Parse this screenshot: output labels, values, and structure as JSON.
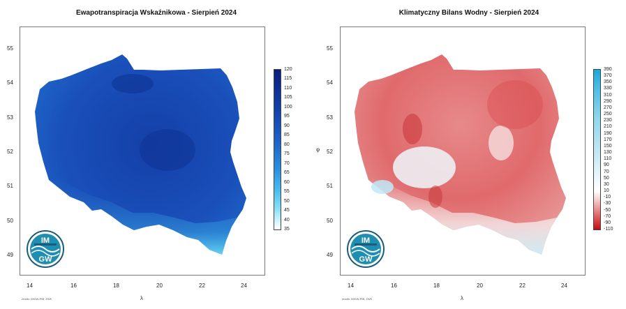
{
  "left": {
    "title": "Ewapotranspiracja Wskaźnikowa - Sierpień 2024",
    "colorbar": {
      "ticks": [
        "120",
        "115",
        "110",
        "105",
        "100",
        "95",
        "90",
        "85",
        "80",
        "75",
        "70",
        "65",
        "60",
        "55",
        "50",
        "45",
        "40",
        "35"
      ],
      "colors": {
        "high": "#0b1f7a",
        "mid": "#1c64c8",
        "low": "#5ad2f0",
        "bottom": "#ffffff"
      }
    }
  },
  "right": {
    "title": "Klimatyczny Bilans Wodny - Sierpień 2024",
    "colorbar": {
      "ticks": [
        "390",
        "370",
        "350",
        "330",
        "310",
        "290",
        "270",
        "250",
        "230",
        "210",
        "190",
        "170",
        "150",
        "130",
        "110",
        "90",
        "70",
        "50",
        "30",
        "10",
        "-10",
        "-30",
        "-50",
        "-70",
        "-90",
        "-110"
      ],
      "colors": {
        "high": "#1aa7d8",
        "zero": "#ffffff",
        "low": "#c40d15"
      }
    }
  },
  "axes": {
    "lat_labels": [
      "55",
      "54",
      "53",
      "52",
      "51",
      "50",
      "49"
    ],
    "lon_labels": [
      "14",
      "16",
      "18",
      "20",
      "22",
      "24"
    ],
    "x_name": "λ",
    "y_name": "φ"
  },
  "logo": {
    "top": "IM",
    "bottom": "GW"
  },
  "source": "źródło: IMGW-PIB, ZWK"
}
